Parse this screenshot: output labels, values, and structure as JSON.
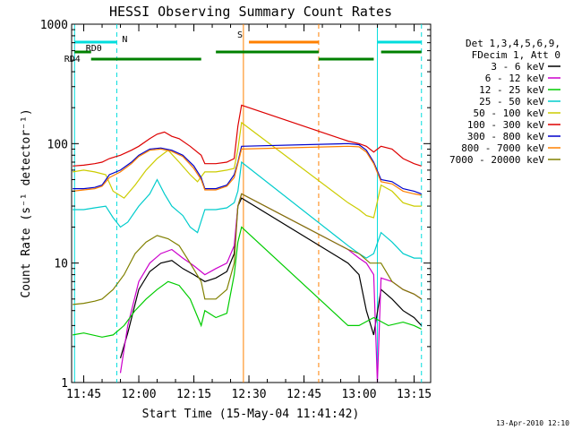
{
  "chart_data": {
    "type": "line",
    "title": "HESSI Observing Summary Count Rates",
    "xlabel": "Start Time (15-May-04 11:41:42)",
    "ylabel": "Count Rate (s⁻¹ detector⁻¹)",
    "y_scale": "log",
    "ylim": [
      1,
      1000
    ],
    "xlim": [
      "11:41:42",
      "13:19:30"
    ],
    "x_ticks": [
      "11:45",
      "12:00",
      "12:15",
      "12:30",
      "12:45",
      "13:00",
      "13:15"
    ],
    "y_ticks": [
      "1",
      "10",
      "100",
      "1000"
    ],
    "grid": false,
    "legend_placement": "right",
    "legend_header": [
      "Det 1,3,4,5,6,9,",
      "FDecim 1, Att 0"
    ],
    "series": [
      {
        "name": "3 - 6 keV",
        "color": "#000000",
        "points": [
          [
            "11:45",
            null
          ],
          [
            "11:52",
            null
          ],
          [
            "11:55",
            1.6
          ],
          [
            "11:57",
            2.6
          ],
          [
            "12:00",
            6.0
          ],
          [
            "12:03",
            8.5
          ],
          [
            "12:06",
            10.0
          ],
          [
            "12:09",
            10.5
          ],
          [
            "12:12",
            9.0
          ],
          [
            "12:15",
            8.0
          ],
          [
            "12:18",
            7.0
          ],
          [
            "12:21",
            7.5
          ],
          [
            "12:24",
            8.5
          ],
          [
            "12:26",
            12.0
          ],
          [
            "12:27",
            30.0
          ],
          [
            "12:28",
            35.0
          ],
          [
            "12:57",
            10.0
          ],
          [
            "13:00",
            8.0
          ],
          [
            "13:02",
            4.0
          ],
          [
            "13:04",
            2.5
          ],
          [
            "13:06",
            6.0
          ],
          [
            "13:09",
            5.0
          ],
          [
            "13:12",
            4.0
          ],
          [
            "13:15",
            3.5
          ],
          [
            "13:17",
            3.0
          ]
        ]
      },
      {
        "name": "6 - 12 keV",
        "color": "#cc00cc",
        "points": [
          [
            "11:55",
            1.2
          ],
          [
            "11:57",
            3.0
          ],
          [
            "12:00",
            7.0
          ],
          [
            "12:03",
            10.0
          ],
          [
            "12:06",
            12.0
          ],
          [
            "12:09",
            13.0
          ],
          [
            "12:12",
            11.0
          ],
          [
            "12:15",
            9.5
          ],
          [
            "12:18",
            8.0
          ],
          [
            "12:21",
            9.0
          ],
          [
            "12:24",
            10.0
          ],
          [
            "12:26",
            14.0
          ],
          [
            "12:27",
            30.0
          ],
          [
            "12:28",
            38.0
          ],
          [
            "12:57",
            13.0
          ],
          [
            "13:00",
            11.0
          ],
          [
            "13:02",
            10.0
          ],
          [
            "13:04",
            8.0
          ],
          [
            "13:05",
            1.0
          ],
          [
            "13:06",
            7.5
          ],
          [
            "13:09",
            7.0
          ],
          [
            "13:12",
            6.0
          ],
          [
            "13:15",
            5.5
          ],
          [
            "13:17",
            5.0
          ]
        ]
      },
      {
        "name": "12 - 25 keV",
        "color": "#00cc00",
        "points": [
          [
            "11:42",
            2.5
          ],
          [
            "11:45",
            2.6
          ],
          [
            "11:50",
            2.4
          ],
          [
            "11:53",
            2.5
          ],
          [
            "11:56",
            3.0
          ],
          [
            "11:59",
            4.0
          ],
          [
            "12:02",
            5.0
          ],
          [
            "12:05",
            6.0
          ],
          [
            "12:08",
            7.0
          ],
          [
            "12:11",
            6.5
          ],
          [
            "12:14",
            5.0
          ],
          [
            "12:17",
            3.0
          ],
          [
            "12:18",
            4.0
          ],
          [
            "12:21",
            3.5
          ],
          [
            "12:24",
            3.8
          ],
          [
            "12:26",
            8.0
          ],
          [
            "12:27",
            15.0
          ],
          [
            "12:28",
            20.0
          ],
          [
            "12:57",
            3.0
          ],
          [
            "13:00",
            3.0
          ],
          [
            "13:04",
            3.5
          ],
          [
            "13:08",
            3.0
          ],
          [
            "13:12",
            3.2
          ],
          [
            "13:15",
            3.0
          ],
          [
            "13:17",
            2.8
          ]
        ]
      },
      {
        "name": "25 - 50 keV",
        "color": "#00cccc",
        "points": [
          [
            "11:42",
            28
          ],
          [
            "11:45",
            28
          ],
          [
            "11:48",
            29
          ],
          [
            "11:51",
            30
          ],
          [
            "11:53",
            24
          ],
          [
            "11:55",
            20
          ],
          [
            "11:57",
            22
          ],
          [
            "12:00",
            30
          ],
          [
            "12:03",
            38
          ],
          [
            "12:05",
            50
          ],
          [
            "12:07",
            38
          ],
          [
            "12:09",
            30
          ],
          [
            "12:12",
            25
          ],
          [
            "12:14",
            20
          ],
          [
            "12:16",
            18
          ],
          [
            "12:18",
            28
          ],
          [
            "12:21",
            28
          ],
          [
            "12:24",
            29
          ],
          [
            "12:26",
            32
          ],
          [
            "12:27",
            40
          ],
          [
            "12:28",
            70
          ],
          [
            "12:57",
            14
          ],
          [
            "13:00",
            12
          ],
          [
            "13:02",
            11
          ],
          [
            "13:04",
            12
          ],
          [
            "13:06",
            18
          ],
          [
            "13:09",
            15
          ],
          [
            "13:12",
            12
          ],
          [
            "13:15",
            11
          ],
          [
            "13:17",
            11
          ]
        ]
      },
      {
        "name": "50 - 100 keV",
        "color": "#cccc00",
        "points": [
          [
            "11:42",
            58
          ],
          [
            "11:45",
            60
          ],
          [
            "11:48",
            58
          ],
          [
            "11:51",
            55
          ],
          [
            "11:53",
            40
          ],
          [
            "11:56",
            35
          ],
          [
            "11:59",
            45
          ],
          [
            "12:02",
            60
          ],
          [
            "12:05",
            75
          ],
          [
            "12:08",
            88
          ],
          [
            "12:11",
            70
          ],
          [
            "12:14",
            55
          ],
          [
            "12:16",
            48
          ],
          [
            "12:18",
            58
          ],
          [
            "12:21",
            58
          ],
          [
            "12:24",
            60
          ],
          [
            "12:26",
            62
          ],
          [
            "12:27",
            90
          ],
          [
            "12:28",
            150
          ],
          [
            "12:57",
            32
          ],
          [
            "13:00",
            28
          ],
          [
            "13:02",
            25
          ],
          [
            "13:04",
            24
          ],
          [
            "13:06",
            45
          ],
          [
            "13:09",
            40
          ],
          [
            "13:12",
            32
          ],
          [
            "13:15",
            30
          ],
          [
            "13:17",
            30
          ]
        ]
      },
      {
        "name": "100 - 300 keV",
        "color": "#dd0000",
        "points": [
          [
            "11:42",
            65
          ],
          [
            "11:45",
            66
          ],
          [
            "11:48",
            68
          ],
          [
            "11:50",
            70
          ],
          [
            "11:52",
            75
          ],
          [
            "11:55",
            80
          ],
          [
            "11:58",
            88
          ],
          [
            "12:00",
            95
          ],
          [
            "12:03",
            110
          ],
          [
            "12:05",
            120
          ],
          [
            "12:07",
            125
          ],
          [
            "12:09",
            115
          ],
          [
            "12:11",
            110
          ],
          [
            "12:14",
            95
          ],
          [
            "12:17",
            80
          ],
          [
            "12:18",
            68
          ],
          [
            "12:21",
            68
          ],
          [
            "12:24",
            70
          ],
          [
            "12:26",
            75
          ],
          [
            "12:27",
            140
          ],
          [
            "12:28",
            210
          ],
          [
            "12:57",
            105
          ],
          [
            "13:00",
            100
          ],
          [
            "13:02",
            95
          ],
          [
            "13:04",
            85
          ],
          [
            "13:06",
            95
          ],
          [
            "13:09",
            90
          ],
          [
            "13:12",
            75
          ],
          [
            "13:15",
            68
          ],
          [
            "13:17",
            65
          ]
        ]
      },
      {
        "name": "300 - 800 keV",
        "color": "#0000cc",
        "points": [
          [
            "11:42",
            42
          ],
          [
            "11:45",
            42
          ],
          [
            "11:48",
            43
          ],
          [
            "11:50",
            45
          ],
          [
            "11:52",
            55
          ],
          [
            "11:55",
            60
          ],
          [
            "11:58",
            70
          ],
          [
            "12:00",
            80
          ],
          [
            "12:03",
            90
          ],
          [
            "12:06",
            92
          ],
          [
            "12:09",
            88
          ],
          [
            "12:12",
            80
          ],
          [
            "12:15",
            65
          ],
          [
            "12:17",
            52
          ],
          [
            "12:18",
            42
          ],
          [
            "12:21",
            42
          ],
          [
            "12:24",
            45
          ],
          [
            "12:26",
            55
          ],
          [
            "12:27",
            70
          ],
          [
            "12:28",
            95
          ],
          [
            "12:57",
            100
          ],
          [
            "13:00",
            98
          ],
          [
            "13:02",
            88
          ],
          [
            "13:04",
            70
          ],
          [
            "13:06",
            50
          ],
          [
            "13:09",
            48
          ],
          [
            "13:12",
            42
          ],
          [
            "13:15",
            40
          ],
          [
            "13:17",
            38
          ]
        ]
      },
      {
        "name": "800 - 7000 keV",
        "color": "#ff8000",
        "points": [
          [
            "11:42",
            40
          ],
          [
            "11:45",
            41
          ],
          [
            "11:48",
            42
          ],
          [
            "11:50",
            44
          ],
          [
            "11:52",
            52
          ],
          [
            "11:55",
            58
          ],
          [
            "11:58",
            68
          ],
          [
            "12:00",
            78
          ],
          [
            "12:03",
            88
          ],
          [
            "12:06",
            90
          ],
          [
            "12:09",
            86
          ],
          [
            "12:12",
            78
          ],
          [
            "12:15",
            62
          ],
          [
            "12:17",
            50
          ],
          [
            "12:18",
            41
          ],
          [
            "12:21",
            41
          ],
          [
            "12:24",
            44
          ],
          [
            "12:26",
            52
          ],
          [
            "12:27",
            68
          ],
          [
            "12:28",
            90
          ],
          [
            "12:57",
            95
          ],
          [
            "13:00",
            94
          ],
          [
            "13:02",
            85
          ],
          [
            "13:04",
            68
          ],
          [
            "13:06",
            48
          ],
          [
            "13:09",
            46
          ],
          [
            "13:12",
            40
          ],
          [
            "13:15",
            38
          ],
          [
            "13:17",
            37
          ]
        ]
      },
      {
        "name": "7000 - 20000 keV",
        "color": "#808000",
        "points": [
          [
            "11:42",
            4.5
          ],
          [
            "11:45",
            4.6
          ],
          [
            "11:48",
            4.8
          ],
          [
            "11:50",
            5.0
          ],
          [
            "11:53",
            6.0
          ],
          [
            "11:56",
            8.0
          ],
          [
            "11:59",
            12.0
          ],
          [
            "12:02",
            15.0
          ],
          [
            "12:05",
            17.0
          ],
          [
            "12:08",
            16.0
          ],
          [
            "12:11",
            14.0
          ],
          [
            "12:14",
            10.0
          ],
          [
            "12:17",
            7.0
          ],
          [
            "12:18",
            5.0
          ],
          [
            "12:21",
            5.0
          ],
          [
            "12:24",
            6.0
          ],
          [
            "12:26",
            10.0
          ],
          [
            "12:27",
            30.0
          ],
          [
            "12:28",
            38.0
          ],
          [
            "12:57",
            13.0
          ],
          [
            "13:00",
            12.0
          ],
          [
            "13:03",
            10.0
          ],
          [
            "13:06",
            10.0
          ],
          [
            "13:09",
            7.0
          ],
          [
            "13:12",
            6.0
          ],
          [
            "13:15",
            5.5
          ],
          [
            "13:17",
            5.0
          ]
        ]
      }
    ],
    "vertical_markers": [
      {
        "time": "11:42:30",
        "color": "#00dddd",
        "style": "solid"
      },
      {
        "time": "11:54",
        "color": "#00dddd",
        "style": "dashed"
      },
      {
        "time": "12:28:30",
        "color": "#ff8000",
        "style": "solid"
      },
      {
        "time": "12:49",
        "color": "#ff8000",
        "style": "dashed"
      },
      {
        "time": "13:05",
        "color": "#00dddd",
        "style": "solid"
      },
      {
        "time": "13:17",
        "color": "#00dddd",
        "style": "dashed"
      }
    ],
    "flag_bars": [
      {
        "label": "N",
        "color": "#00dddd",
        "start": "11:42:30",
        "end": "11:54",
        "level": "top"
      },
      {
        "label": "",
        "color": "#00dddd",
        "start": "13:05",
        "end": "13:17",
        "level": "top"
      },
      {
        "label": "S",
        "color": "#ff8000",
        "start": "12:30",
        "end": "12:49",
        "level": "top"
      },
      {
        "label": "RD0",
        "color": "#008000",
        "start": "11:42:30",
        "end": "11:47",
        "level": "middle"
      },
      {
        "label": "",
        "color": "#008000",
        "start": "12:21",
        "end": "12:49",
        "level": "middle"
      },
      {
        "label": "",
        "color": "#008000",
        "start": "13:06",
        "end": "13:17",
        "level": "middle"
      },
      {
        "label": "RD4",
        "color": "#008000",
        "start": "11:47",
        "end": "12:17",
        "level": "lower"
      },
      {
        "label": "",
        "color": "#008000",
        "start": "12:49",
        "end": "13:04",
        "level": "lower"
      }
    ]
  },
  "footer": {
    "timestamp": "13-Apr-2010 12:10"
  }
}
